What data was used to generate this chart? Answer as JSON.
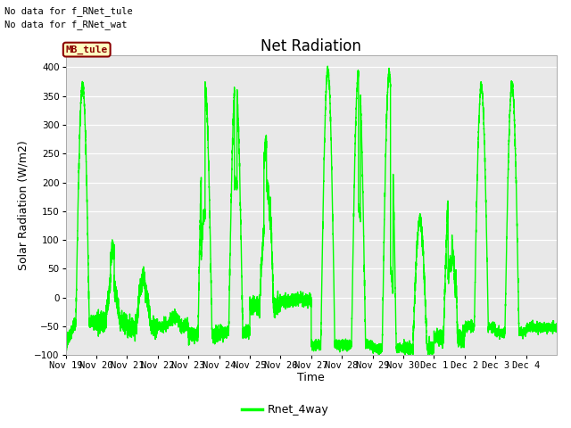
{
  "title": "Net Radiation",
  "ylabel": "Solar Radiation (W/m2)",
  "xlabel": "Time",
  "ylim": [
    -100,
    420
  ],
  "yticks": [
    -100,
    -50,
    0,
    50,
    100,
    150,
    200,
    250,
    300,
    350,
    400
  ],
  "line_color": "#00FF00",
  "line_width": 1.0,
  "bg_color": "#E8E8E8",
  "fig_bg_color": "#FFFFFF",
  "annotations": [
    "No data for f_RNet_tule",
    "No data for f_RNet_wat"
  ],
  "legend_label": "Rnet_4way",
  "legend_box_facecolor": "#FFFFC0",
  "legend_box_edgecolor": "#8B0000",
  "legend_text_color": "#8B0000",
  "x_tick_labels": [
    "Nov 19",
    "Nov 20",
    "Nov 21",
    "Nov 22",
    "Nov 23",
    "Nov 24",
    "Nov 25",
    "Nov 26",
    "Nov 27",
    "Nov 28",
    "Nov 29",
    "Nov 30",
    "Dec 1",
    "Dec 2",
    "Dec 3",
    "Dec 4"
  ],
  "title_fontsize": 12,
  "label_fontsize": 9,
  "tick_fontsize": 7.5,
  "annot_fontsize": 7.5
}
